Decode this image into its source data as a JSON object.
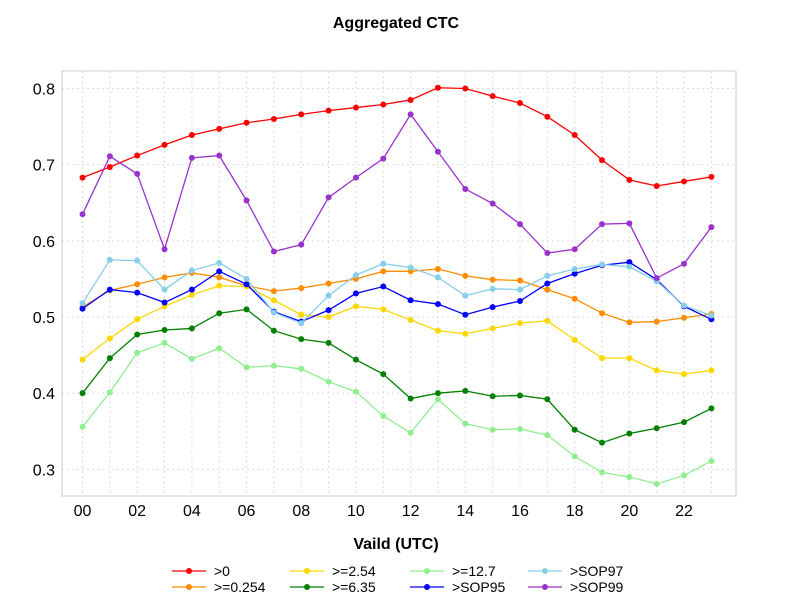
{
  "chart_data": {
    "type": "line",
    "title": "Aggregated CTC",
    "xlabel": "Vaild (UTC)",
    "ylabel": "",
    "x": [
      0,
      1,
      2,
      3,
      4,
      5,
      6,
      7,
      8,
      9,
      10,
      11,
      12,
      13,
      14,
      15,
      16,
      17,
      18,
      19,
      20,
      21,
      22,
      23
    ],
    "xticks": [
      "00",
      "02",
      "04",
      "06",
      "08",
      "10",
      "12",
      "14",
      "16",
      "18",
      "20",
      "22"
    ],
    "yticks": [
      "0.3",
      "0.4",
      "0.5",
      "0.6",
      "0.7",
      "0.8"
    ],
    "ylim": [
      0.265,
      0.823
    ],
    "xlim": [
      -0.75,
      23.9
    ],
    "grid": true,
    "legend_placement": "bottom",
    "series": [
      {
        "name": ">0",
        "color": "#ff0000",
        "values": [
          0.683,
          0.697,
          0.712,
          0.726,
          0.739,
          0.747,
          0.755,
          0.76,
          0.766,
          0.771,
          0.775,
          0.779,
          0.785,
          0.801,
          0.8,
          0.79,
          0.781,
          0.763,
          0.739,
          0.706,
          0.68,
          0.672,
          0.678,
          0.684
        ]
      },
      {
        "name": ">=0.254",
        "color": "#ff8c00",
        "values": [
          0.513,
          0.535,
          0.543,
          0.552,
          0.558,
          0.552,
          0.541,
          0.534,
          0.538,
          0.544,
          0.55,
          0.56,
          0.56,
          0.563,
          0.554,
          0.549,
          0.548,
          0.536,
          0.524,
          0.505,
          0.493,
          0.494,
          0.499,
          0.504
        ]
      },
      {
        "name": ">=2.54",
        "color": "#ffd700",
        "values": [
          0.444,
          0.472,
          0.497,
          0.514,
          0.529,
          0.541,
          0.54,
          0.522,
          0.503,
          0.5,
          0.514,
          0.51,
          0.496,
          0.482,
          0.478,
          0.485,
          0.492,
          0.495,
          0.47,
          0.446,
          0.446,
          0.43,
          0.425,
          0.43
        ]
      },
      {
        "name": ">=6.35",
        "color": "#008000",
        "values": [
          0.4,
          0.446,
          0.477,
          0.483,
          0.485,
          0.505,
          0.51,
          0.482,
          0.471,
          0.466,
          0.444,
          0.425,
          0.393,
          0.4,
          0.403,
          0.396,
          0.397,
          0.392,
          0.352,
          0.335,
          0.347,
          0.354,
          0.362,
          0.38
        ]
      },
      {
        "name": ">=12.7",
        "color": "#90ee90",
        "values": [
          0.356,
          0.401,
          0.453,
          0.466,
          0.445,
          0.459,
          0.434,
          0.436,
          0.432,
          0.415,
          0.402,
          0.37,
          0.348,
          0.392,
          0.36,
          0.352,
          0.353,
          0.345,
          0.317,
          0.296,
          0.29,
          0.281,
          0.292,
          0.311
        ]
      },
      {
        "name": ">SOP95",
        "color": "#0000ff",
        "values": [
          0.511,
          0.536,
          0.532,
          0.519,
          0.536,
          0.56,
          0.543,
          0.507,
          0.494,
          0.509,
          0.531,
          0.54,
          0.522,
          0.517,
          0.503,
          0.513,
          0.521,
          0.544,
          0.557,
          0.568,
          0.572,
          0.549,
          0.514,
          0.497
        ]
      },
      {
        "name": ">SOP97",
        "color": "#87ceeb",
        "values": [
          0.518,
          0.575,
          0.574,
          0.536,
          0.561,
          0.571,
          0.55,
          0.506,
          0.492,
          0.528,
          0.555,
          0.57,
          0.565,
          0.552,
          0.528,
          0.537,
          0.536,
          0.554,
          0.563,
          0.569,
          0.566,
          0.547,
          0.515,
          0.502
        ]
      },
      {
        "name": ">SOP99",
        "color": "#9932cc",
        "values": [
          0.635,
          0.711,
          0.688,
          0.589,
          0.709,
          0.712,
          0.653,
          0.586,
          0.595,
          0.657,
          0.683,
          0.708,
          0.766,
          0.717,
          0.668,
          0.649,
          0.622,
          0.584,
          0.589,
          0.622,
          0.623,
          0.551,
          0.57,
          0.618
        ]
      }
    ],
    "legend_order": [
      ">0",
      ">=2.54",
      ">=12.7",
      ">SOP97",
      ">=0.254",
      ">=6.35",
      ">SOP95",
      ">SOP99"
    ]
  }
}
